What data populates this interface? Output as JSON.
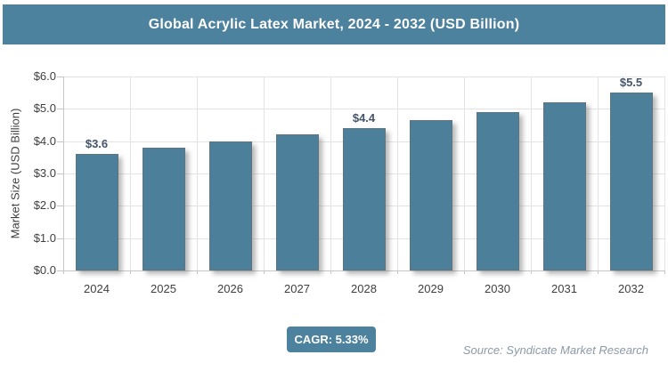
{
  "header": {
    "title": "Global Acrylic Latex Market, 2024 - 2032 (USD Billion)"
  },
  "colors": {
    "teal": "#4d829e",
    "bar": "#4c7f9a",
    "grid": "#e3e3e3",
    "axis": "#c6c6c6",
    "data_label": "#44546a",
    "tick_text": "#3f3f3f",
    "source_text": "#8b9aa7"
  },
  "chart_data": {
    "type": "bar",
    "title": "Global Acrylic Latex Market, 2024 - 2032 (USD Billion)",
    "categories": [
      "2024",
      "2025",
      "2026",
      "2027",
      "2028",
      "2029",
      "2030",
      "2031",
      "2032"
    ],
    "values": [
      3.6,
      3.8,
      4.0,
      4.2,
      4.4,
      4.65,
      4.9,
      5.2,
      5.5
    ],
    "bar_labels": [
      "$3.6",
      null,
      null,
      null,
      "$4.4",
      null,
      null,
      null,
      "$5.5"
    ],
    "xlabel": "",
    "ylabel": "Market Size (USD Billion)",
    "ylim": [
      0,
      6
    ],
    "ytick_step": 1,
    "ytick_labels": [
      "$0.0",
      "$1.0",
      "$2.0",
      "$3.0",
      "$4.0",
      "$5.0",
      "$6.0"
    ],
    "grid": true,
    "legend": false
  },
  "footer": {
    "cagr_label": "CAGR: 5.33%",
    "source": "Source: Syndicate Market Research"
  }
}
